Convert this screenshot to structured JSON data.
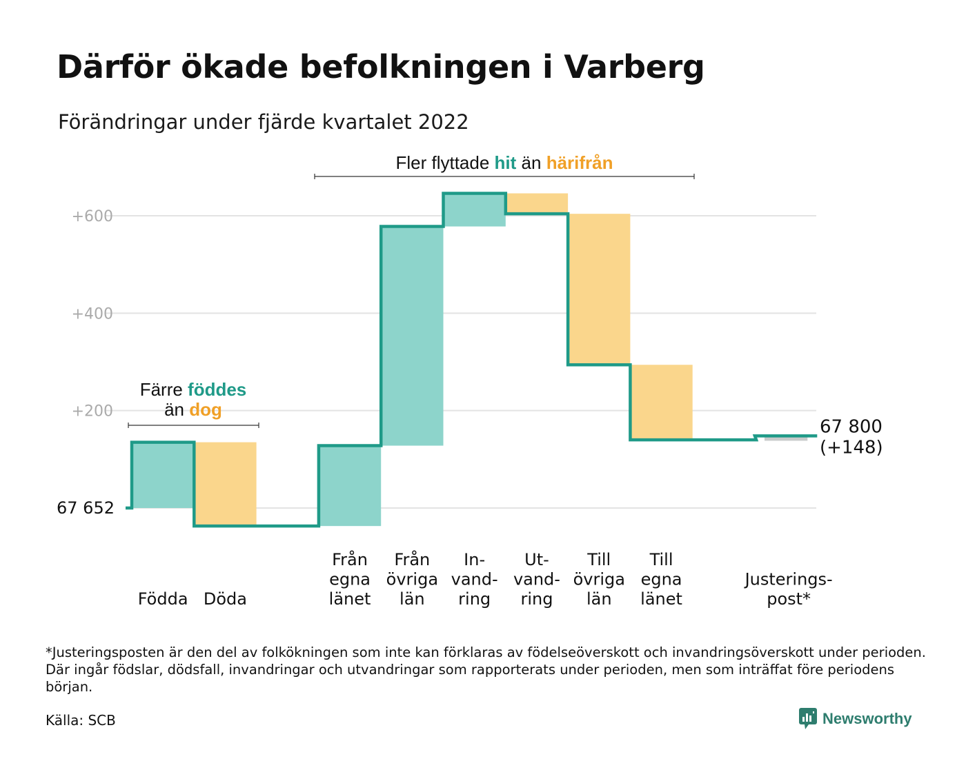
{
  "header": {
    "title": "Därför ökade befolkningen i Varberg",
    "subtitle": "Förändringar under fjärde kvartalet 2022"
  },
  "annotations": {
    "natural": {
      "line1_prefix": "Färre ",
      "line1_highlight": "föddes",
      "line2_prefix": "än ",
      "line2_highlight": "dog"
    },
    "migration": {
      "prefix": "Fler flyttade ",
      "highlight1": "hit",
      "middle": " än ",
      "highlight2": "härifrån"
    }
  },
  "chart_data": {
    "type": "waterfall",
    "start_value": 67652,
    "start_label": "67 652",
    "end_value": 67800,
    "end_label": "67 800",
    "end_change_label": "(+148)",
    "y_axis": {
      "ticks": [
        600,
        400,
        200
      ],
      "tick_labels": [
        "+600",
        "+400",
        "+200"
      ],
      "range": [
        -40,
        640
      ],
      "baseline": 0
    },
    "categories": [
      {
        "lines": [
          "Födda"
        ],
        "start": 0,
        "end": 135,
        "kind": "inflow"
      },
      {
        "lines": [
          "Döda"
        ],
        "start": 135,
        "end": -37,
        "kind": "outflow"
      },
      {
        "lines": [
          ""
        ],
        "start": -37,
        "end": -37,
        "kind": "gap"
      },
      {
        "lines": [
          "Från",
          "egna",
          "länet"
        ],
        "start": -37,
        "end": 128,
        "kind": "inflow"
      },
      {
        "lines": [
          "Från",
          "övriga",
          "län"
        ],
        "start": 128,
        "end": 578,
        "kind": "inflow"
      },
      {
        "lines": [
          "In-",
          "vand-",
          "ring"
        ],
        "start": 578,
        "end": 646,
        "kind": "inflow"
      },
      {
        "lines": [
          "Ut-",
          "vand-",
          "ring"
        ],
        "start": 646,
        "end": 604,
        "kind": "outflow"
      },
      {
        "lines": [
          "Till",
          "övriga",
          "län"
        ],
        "start": 604,
        "end": 294,
        "kind": "outflow"
      },
      {
        "lines": [
          "Till",
          "egna",
          "länet"
        ],
        "start": 294,
        "end": 140,
        "kind": "outflow"
      },
      {
        "lines": [
          ""
        ],
        "start": 140,
        "end": 140,
        "kind": "gap"
      },
      {
        "lines": [
          "Justerings-",
          "post*"
        ],
        "start": 140,
        "end": 148,
        "kind": "adjustment"
      }
    ],
    "colors": {
      "inflow": "#8dd4cb",
      "outflow": "#fad68c",
      "adjustment": "#c9cbcb",
      "line": "#1f9a88",
      "teal_text": "#1f9a88",
      "orange_text": "#f0a027",
      "grid": "#e3e3e3",
      "tick_text": "#aaaaaa"
    }
  },
  "footer": {
    "footnote": "*Justeringsposten är den del av folkökningen som inte kan förklaras av födelseöverskott och invandringsöverskott under perioden. Där ingår födslar, dödsfall, invandringar och utvandringar som rapporterats under perioden, men som inträffat före periodens början.",
    "source": "Källa: SCB",
    "brand": "Newsworthy"
  }
}
